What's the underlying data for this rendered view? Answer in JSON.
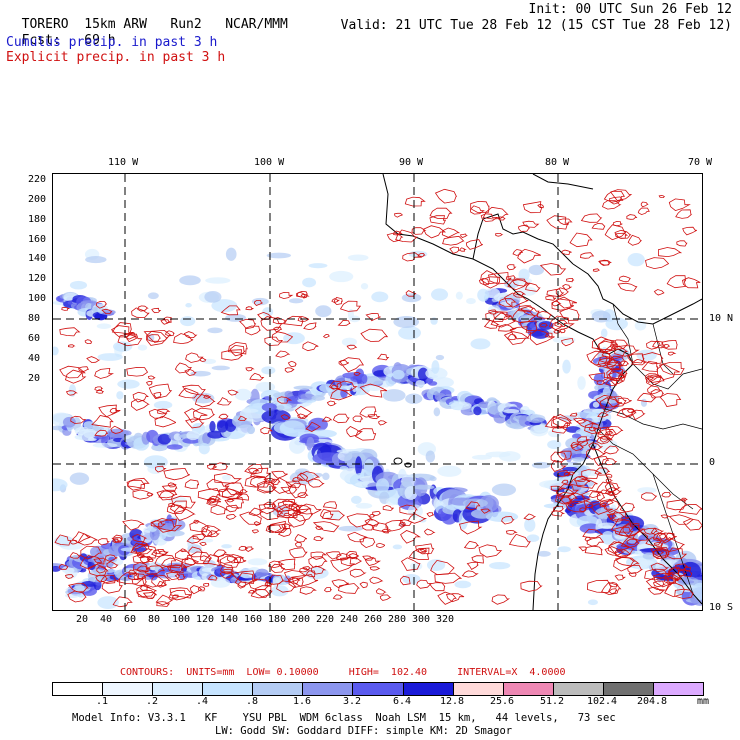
{
  "header": {
    "model": "TORERO",
    "resolution": "15km ARW",
    "run": "Run2",
    "center": "NCAR/MMM",
    "init": "Init: 00 UTC Sun 26 Feb 12",
    "fcst_label": "Fcst:",
    "fcst_value": "69 h",
    "valid": "Valid: 21 UTC Tue 28 Feb 12 (15 CST Tue 28 Feb 12)",
    "legend_cumulus": "Cumulus precip. in past 3 h",
    "legend_explicit": "Explicit precip. in past 3 h"
  },
  "axes": {
    "lon_labels": [
      "110 W",
      "100 W",
      "90 W",
      "80 W",
      "70 W"
    ],
    "lat_labels": [
      "10 N",
      "0",
      "10 S"
    ],
    "y_grid": [
      "220",
      "200",
      "180",
      "160",
      "140",
      "120",
      "100",
      "80",
      "60",
      "40",
      "20"
    ],
    "x_grid": [
      "20",
      "40",
      "60",
      "80",
      "100",
      "120",
      "140",
      "160",
      "180",
      "200",
      "220",
      "240",
      "260",
      "280",
      "300",
      "320"
    ]
  },
  "contour_info": {
    "text": "CONTOURS:  UNITS=mm  LOW= 0.10000     HIGH=  102.40     INTERVAL=X  4.0000"
  },
  "colorbar": {
    "labels": [
      ".1",
      ".2",
      ".4",
      ".8",
      "1.6",
      "3.2",
      "6.4",
      "12.8",
      "25.6",
      "51.2",
      "102.4",
      "204.8"
    ],
    "units": "mm",
    "colors": [
      "#ffffff",
      "#eef6ff",
      "#dcefff",
      "#c6e4ff",
      "#b4ccf4",
      "#8c96ee",
      "#5a5aee",
      "#1a1ad8",
      "#ffdada",
      "#ee88b4",
      "#bcbcbc",
      "#707070",
      "#dcaaff"
    ]
  },
  "footer": {
    "line1": "Model Info: V3.3.1   KF    YSU PBL  WDM 6class  Noah LSM  15 km,   44 levels,   73 sec",
    "line2": "LW: Godd SW: Goddard DIFF: simple KM: 2D Smagor"
  },
  "colors": {
    "cumulus": "#1a1acc",
    "explicit": "#d01010",
    "coast": "#000000"
  }
}
